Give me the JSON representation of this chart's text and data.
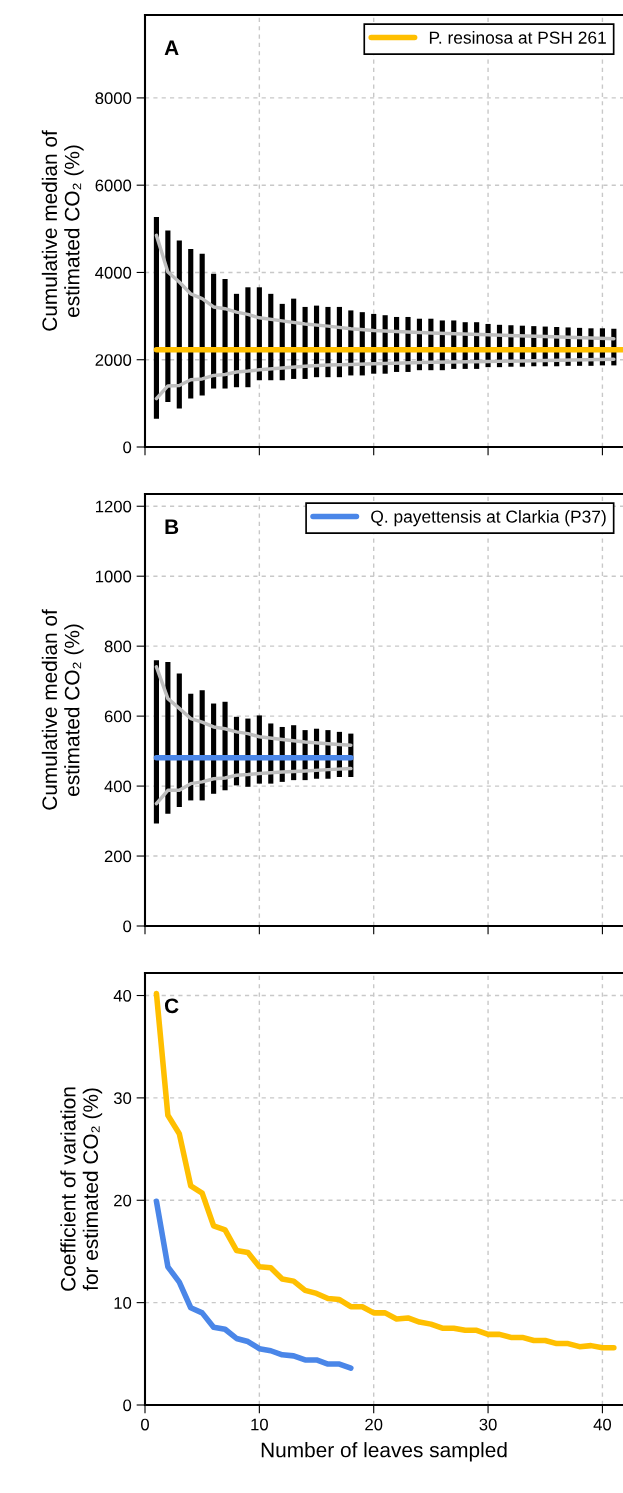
{
  "chart_data": [
    {
      "type": "bar",
      "ylabel": "Cumulative median of\nestimated CO₂ (%)",
      "annotations": [
        "A"
      ],
      "xlim": [
        0,
        41.8
      ],
      "xticks": [
        0,
        10,
        20,
        30,
        40
      ],
      "ylim": [
        0,
        9900
      ],
      "yticks": [
        0,
        2000,
        4000,
        6000,
        8000
      ],
      "grid": true,
      "legend": "top right",
      "tick_labels": "y",
      "series": [
        {
          "type": "bar",
          "color": "#000000",
          "x": [
            1,
            2,
            3,
            4,
            5,
            6,
            7,
            8,
            9,
            10,
            11,
            12,
            13,
            14,
            15,
            16,
            17,
            18,
            19,
            20,
            21,
            22,
            23,
            24,
            25,
            26,
            27,
            28,
            29,
            30,
            31,
            32,
            33,
            34,
            35,
            36,
            37,
            38,
            39,
            40,
            41
          ],
          "base": [
            650,
            1030,
            880,
            1110,
            1180,
            1340,
            1340,
            1370,
            1370,
            1530,
            1530,
            1530,
            1560,
            1560,
            1600,
            1600,
            1600,
            1640,
            1640,
            1680,
            1680,
            1720,
            1720,
            1760,
            1760,
            1760,
            1790,
            1790,
            1790,
            1830,
            1830,
            1840,
            1840,
            1850,
            1850,
            1850,
            1860,
            1860,
            1860,
            1870,
            1870
          ],
          "values": [
            4620,
            3930,
            3850,
            3430,
            3250,
            2630,
            2510,
            2140,
            2290,
            2130,
            1980,
            1750,
            1840,
            1650,
            1640,
            1610,
            1610,
            1490,
            1450,
            1370,
            1340,
            1260,
            1260,
            1180,
            1180,
            1140,
            1110,
            1070,
            1070,
            990,
            970,
            950,
            940,
            920,
            910,
            900,
            880,
            870,
            860,
            850,
            840
          ]
        },
        {
          "type": "line",
          "color": "#bebebe",
          "x": [
            1,
            2,
            3,
            4,
            5,
            6,
            7,
            8,
            9,
            10,
            12,
            14,
            16,
            18,
            20,
            25,
            30,
            35,
            41
          ],
          "values": [
            4850,
            4010,
            3780,
            3510,
            3400,
            3210,
            3170,
            3090,
            3040,
            2960,
            2890,
            2820,
            2770,
            2710,
            2670,
            2610,
            2570,
            2530,
            2480
          ]
        },
        {
          "type": "line",
          "color": "#bebebe",
          "x": [
            1,
            2,
            3,
            4,
            5,
            6,
            7,
            8,
            9,
            10,
            12,
            14,
            16,
            18,
            20,
            25,
            30,
            35,
            41
          ],
          "values": [
            1110,
            1400,
            1410,
            1540,
            1560,
            1640,
            1660,
            1720,
            1740,
            1770,
            1810,
            1850,
            1880,
            1890,
            1910,
            1940,
            1960,
            1980,
            2010
          ]
        },
        {
          "type": "line",
          "name": "P. resinosa at PSH 261",
          "color": "#ffbf00",
          "x": [
            1,
            41.8
          ],
          "values": [
            2230,
            2230
          ]
        }
      ]
    },
    {
      "type": "bar",
      "ylabel": "Cumulative median of\nestimated CO₂ (%)",
      "annotations": [
        "B"
      ],
      "xlim": [
        0,
        41.8
      ],
      "xticks": [
        0,
        10,
        20,
        30,
        40
      ],
      "ylim": [
        0,
        1235
      ],
      "yticks": [
        0,
        200,
        400,
        600,
        800,
        1000,
        1200
      ],
      "grid": true,
      "legend": "top right",
      "tick_labels": "y",
      "series": [
        {
          "type": "bar",
          "color": "#000000",
          "x": [
            1,
            2,
            3,
            4,
            5,
            6,
            7,
            8,
            9,
            10,
            11,
            12,
            13,
            14,
            15,
            16,
            17,
            18
          ],
          "base": [
            293,
            321,
            340,
            359,
            359,
            378,
            388,
            402,
            398,
            407,
            407,
            412,
            417,
            417,
            421,
            421,
            426,
            426
          ],
          "values": [
            467,
            434,
            382,
            305,
            315,
            258,
            253,
            196,
            195,
            195,
            172,
            157,
            157,
            143,
            143,
            139,
            129,
            124
          ]
        },
        {
          "type": "line",
          "color": "#bebebe",
          "x": [
            1,
            2,
            3,
            4,
            5,
            6,
            7,
            8,
            9,
            10,
            12,
            14,
            16,
            18
          ],
          "values": [
            741,
            650,
            622,
            593,
            583,
            569,
            564,
            555,
            550,
            541,
            533,
            526,
            521,
            517
          ]
        },
        {
          "type": "line",
          "color": "#bebebe",
          "x": [
            1,
            2,
            3,
            4,
            5,
            6,
            7,
            8,
            9,
            10,
            12,
            14,
            16,
            18
          ],
          "values": [
            350,
            388,
            388,
            407,
            412,
            421,
            423,
            431,
            433,
            436,
            440,
            443,
            447,
            450
          ]
        },
        {
          "type": "line",
          "name": "Q. payettensis at Clarkia (P37)",
          "color": "#4a86e8",
          "x": [
            1,
            18
          ],
          "values": [
            481,
            481
          ]
        }
      ]
    },
    {
      "type": "line",
      "ylabel": "Coefficient of variation\nfor estimated CO₂ (%)",
      "xlabel": "Number of leaves sampled",
      "annotations": [
        "C"
      ],
      "xlim": [
        0,
        41.8
      ],
      "xticks": [
        0,
        10,
        20,
        30,
        40
      ],
      "ylim": [
        0,
        42.2
      ],
      "yticks": [
        0,
        10,
        20,
        30,
        40
      ],
      "grid": true,
      "series": [
        {
          "color": "#ffbf00",
          "x": [
            1,
            2,
            3,
            4,
            5,
            6,
            7,
            8,
            9,
            10,
            11,
            12,
            13,
            14,
            15,
            16,
            17,
            18,
            19,
            20,
            21,
            22,
            23,
            24,
            25,
            26,
            27,
            28,
            29,
            30,
            31,
            32,
            33,
            34,
            35,
            36,
            37,
            38,
            39,
            40,
            41
          ],
          "values": [
            40.2,
            28.3,
            26.5,
            21.4,
            20.7,
            17.5,
            17.1,
            15.1,
            14.9,
            13.5,
            13.4,
            12.3,
            12.1,
            11.2,
            10.9,
            10.4,
            10.3,
            9.6,
            9.6,
            9.0,
            9.0,
            8.4,
            8.5,
            8.1,
            7.9,
            7.5,
            7.5,
            7.3,
            7.3,
            6.9,
            6.9,
            6.6,
            6.6,
            6.3,
            6.3,
            6.0,
            6.0,
            5.7,
            5.8,
            5.6,
            5.6
          ]
        },
        {
          "color": "#4a86e8",
          "x": [
            1,
            2,
            3,
            4,
            5,
            6,
            7,
            8,
            9,
            10,
            11,
            12,
            13,
            14,
            15,
            16,
            17,
            18
          ],
          "values": [
            19.9,
            13.5,
            12.0,
            9.5,
            9.0,
            7.6,
            7.4,
            6.5,
            6.2,
            5.5,
            5.3,
            4.9,
            4.8,
            4.4,
            4.4,
            4.0,
            4.0,
            3.6
          ]
        }
      ]
    }
  ]
}
